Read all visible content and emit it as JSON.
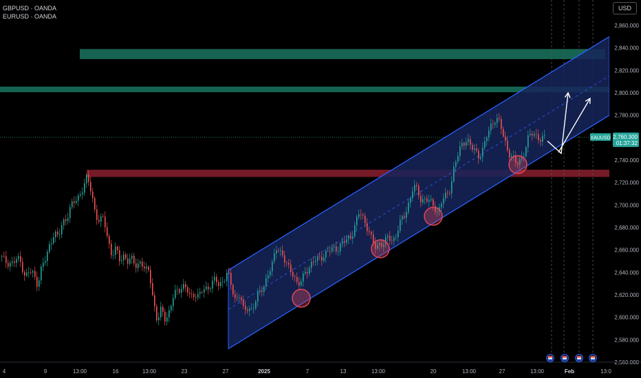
{
  "legend": {
    "series1": "GBPUSD · OANDA",
    "series2": "EURUSD · OANDA"
  },
  "currency_button": "USD",
  "price_badge": {
    "symbol": "XAUUSD",
    "price": "2,760.300",
    "countdown": "01:37:32"
  },
  "colors": {
    "background": "#000000",
    "up": "#26a69a",
    "down": "#ef5350",
    "channel_line": "#2962ff",
    "channel_fill": "#16255a",
    "resistance_zone": "#1a6e5a",
    "support_zone": "#8a1f2e",
    "circle": "#e0475a",
    "price_badge": "#26a69a"
  },
  "chart_data": {
    "type": "candlestick",
    "symbol": "XAUUSD",
    "title": "",
    "y_axis": {
      "ylim": [
        2552,
        2870
      ],
      "ticks": [
        "2,560.000",
        "2,580.000",
        "2,600.000",
        "2,620.000",
        "2,640.000",
        "2,660.000",
        "2,680.000",
        "2,700.000",
        "2,720.000",
        "2,740.000",
        "2,760.000",
        "2,780.000",
        "2,800.000",
        "2,820.000",
        "2,840.000",
        "2,860.000"
      ]
    },
    "x_axis": {
      "ticks": [
        "4",
        "9",
        "13:00",
        "16",
        "13:00",
        "23",
        "27",
        "2025",
        "7",
        "13",
        "13:00",
        "20",
        "13:00",
        "27",
        "13:00",
        "Feb",
        "13:0"
      ]
    },
    "grid": false,
    "current_price": 2760.3,
    "price_path": [
      [
        0,
        2654
      ],
      [
        6,
        2650
      ],
      [
        12,
        2649
      ],
      [
        18,
        2648
      ],
      [
        24,
        2652
      ],
      [
        30,
        2649
      ],
      [
        36,
        2636
      ],
      [
        42,
        2641
      ],
      [
        48,
        2638
      ],
      [
        54,
        2630
      ],
      [
        60,
        2645
      ],
      [
        66,
        2652
      ],
      [
        72,
        2666
      ],
      [
        78,
        2676
      ],
      [
        84,
        2670
      ],
      [
        90,
        2684
      ],
      [
        96,
        2689
      ],
      [
        102,
        2698
      ],
      [
        108,
        2703
      ],
      [
        114,
        2708
      ],
      [
        120,
        2716
      ],
      [
        126,
        2724
      ],
      [
        132,
        2712
      ],
      [
        138,
        2693
      ],
      [
        144,
        2684
      ],
      [
        150,
        2689
      ],
      [
        156,
        2670
      ],
      [
        162,
        2655
      ],
      [
        168,
        2660
      ],
      [
        174,
        2651
      ],
      [
        180,
        2656
      ],
      [
        186,
        2648
      ],
      [
        192,
        2652
      ],
      [
        198,
        2646
      ],
      [
        204,
        2650
      ],
      [
        210,
        2640
      ],
      [
        216,
        2644
      ],
      [
        222,
        2615
      ],
      [
        228,
        2595
      ],
      [
        234,
        2608
      ],
      [
        240,
        2599
      ],
      [
        246,
        2605
      ],
      [
        252,
        2620
      ],
      [
        258,
        2625
      ],
      [
        264,
        2628
      ],
      [
        270,
        2625
      ],
      [
        276,
        2618
      ],
      [
        282,
        2622
      ],
      [
        288,
        2618
      ],
      [
        294,
        2624
      ],
      [
        300,
        2626
      ],
      [
        306,
        2630
      ],
      [
        312,
        2633
      ],
      [
        318,
        2628
      ],
      [
        324,
        2634
      ],
      [
        330,
        2640
      ],
      [
        336,
        2626
      ],
      [
        342,
        2615
      ],
      [
        348,
        2622
      ],
      [
        354,
        2603
      ],
      [
        360,
        2609
      ],
      [
        366,
        2607
      ],
      [
        372,
        2617
      ],
      [
        378,
        2622
      ],
      [
        384,
        2631
      ],
      [
        390,
        2640
      ],
      [
        396,
        2648
      ],
      [
        402,
        2664
      ],
      [
        408,
        2658
      ],
      [
        414,
        2649
      ],
      [
        420,
        2642
      ],
      [
        426,
        2640
      ],
      [
        432,
        2628
      ],
      [
        438,
        2632
      ],
      [
        444,
        2642
      ],
      [
        450,
        2646
      ],
      [
        456,
        2650
      ],
      [
        462,
        2652
      ],
      [
        468,
        2655
      ],
      [
        474,
        2657
      ],
      [
        480,
        2660
      ],
      [
        486,
        2662
      ],
      [
        492,
        2662
      ],
      [
        498,
        2666
      ],
      [
        504,
        2670
      ],
      [
        510,
        2673
      ],
      [
        516,
        2682
      ],
      [
        522,
        2694
      ],
      [
        528,
        2688
      ],
      [
        534,
        2679
      ],
      [
        540,
        2668
      ],
      [
        546,
        2662
      ],
      [
        552,
        2667
      ],
      [
        558,
        2665
      ],
      [
        564,
        2672
      ],
      [
        570,
        2668
      ],
      [
        576,
        2675
      ],
      [
        582,
        2685
      ],
      [
        588,
        2692
      ],
      [
        594,
        2703
      ],
      [
        600,
        2716
      ],
      [
        606,
        2713
      ],
      [
        612,
        2704
      ],
      [
        618,
        2706
      ],
      [
        624,
        2702
      ],
      [
        630,
        2700
      ],
      [
        636,
        2693
      ],
      [
        642,
        2704
      ],
      [
        648,
        2708
      ],
      [
        654,
        2716
      ],
      [
        660,
        2735
      ],
      [
        666,
        2746
      ],
      [
        672,
        2756
      ],
      [
        678,
        2759
      ],
      [
        684,
        2751
      ],
      [
        690,
        2748
      ],
      [
        696,
        2744
      ],
      [
        702,
        2750
      ],
      [
        708,
        2763
      ],
      [
        714,
        2772
      ],
      [
        720,
        2778
      ],
      [
        726,
        2772
      ],
      [
        732,
        2760
      ],
      [
        738,
        2748
      ],
      [
        744,
        2742
      ],
      [
        750,
        2736
      ],
      [
        756,
        2741
      ],
      [
        762,
        2748
      ],
      [
        768,
        2760
      ],
      [
        774,
        2765
      ],
      [
        780,
        2762
      ],
      [
        786,
        2757
      ],
      [
        792,
        2760
      ]
    ],
    "annotations": {
      "resistance_zones": [
        {
          "x_start": 116,
          "x_end": 880,
          "y_top": 2839,
          "y_bottom": 2830
        },
        {
          "x_start": 0,
          "x_end": 886,
          "y_top": 2805.5,
          "y_bottom": 2800.5
        }
      ],
      "support_zone": {
        "x_start": 126,
        "x_end": 886,
        "y_top": 2731.5,
        "y_bottom": 2725
      },
      "channel": {
        "upper": [
          [
            332,
            2642
          ],
          [
            886,
            2850
          ]
        ],
        "lower": [
          [
            332,
            2572
          ],
          [
            886,
            2780
          ]
        ],
        "mid": [
          [
            332,
            2607
          ],
          [
            886,
            2815
          ]
        ]
      },
      "touch_circles": [
        {
          "x": 438,
          "price": 2617
        },
        {
          "x": 553,
          "price": 2661
        },
        {
          "x": 630,
          "price": 2690
        },
        {
          "x": 753,
          "price": 2736
        }
      ],
      "projection_arrows": [
        [
          [
            796,
            2757
          ],
          [
            816,
            2746
          ],
          [
            826,
            2800
          ]
        ],
        [
          [
            812,
            2747
          ],
          [
            858,
            2795
          ]
        ]
      ],
      "future_time_lines": [
        802,
        820,
        842,
        862
      ]
    }
  }
}
